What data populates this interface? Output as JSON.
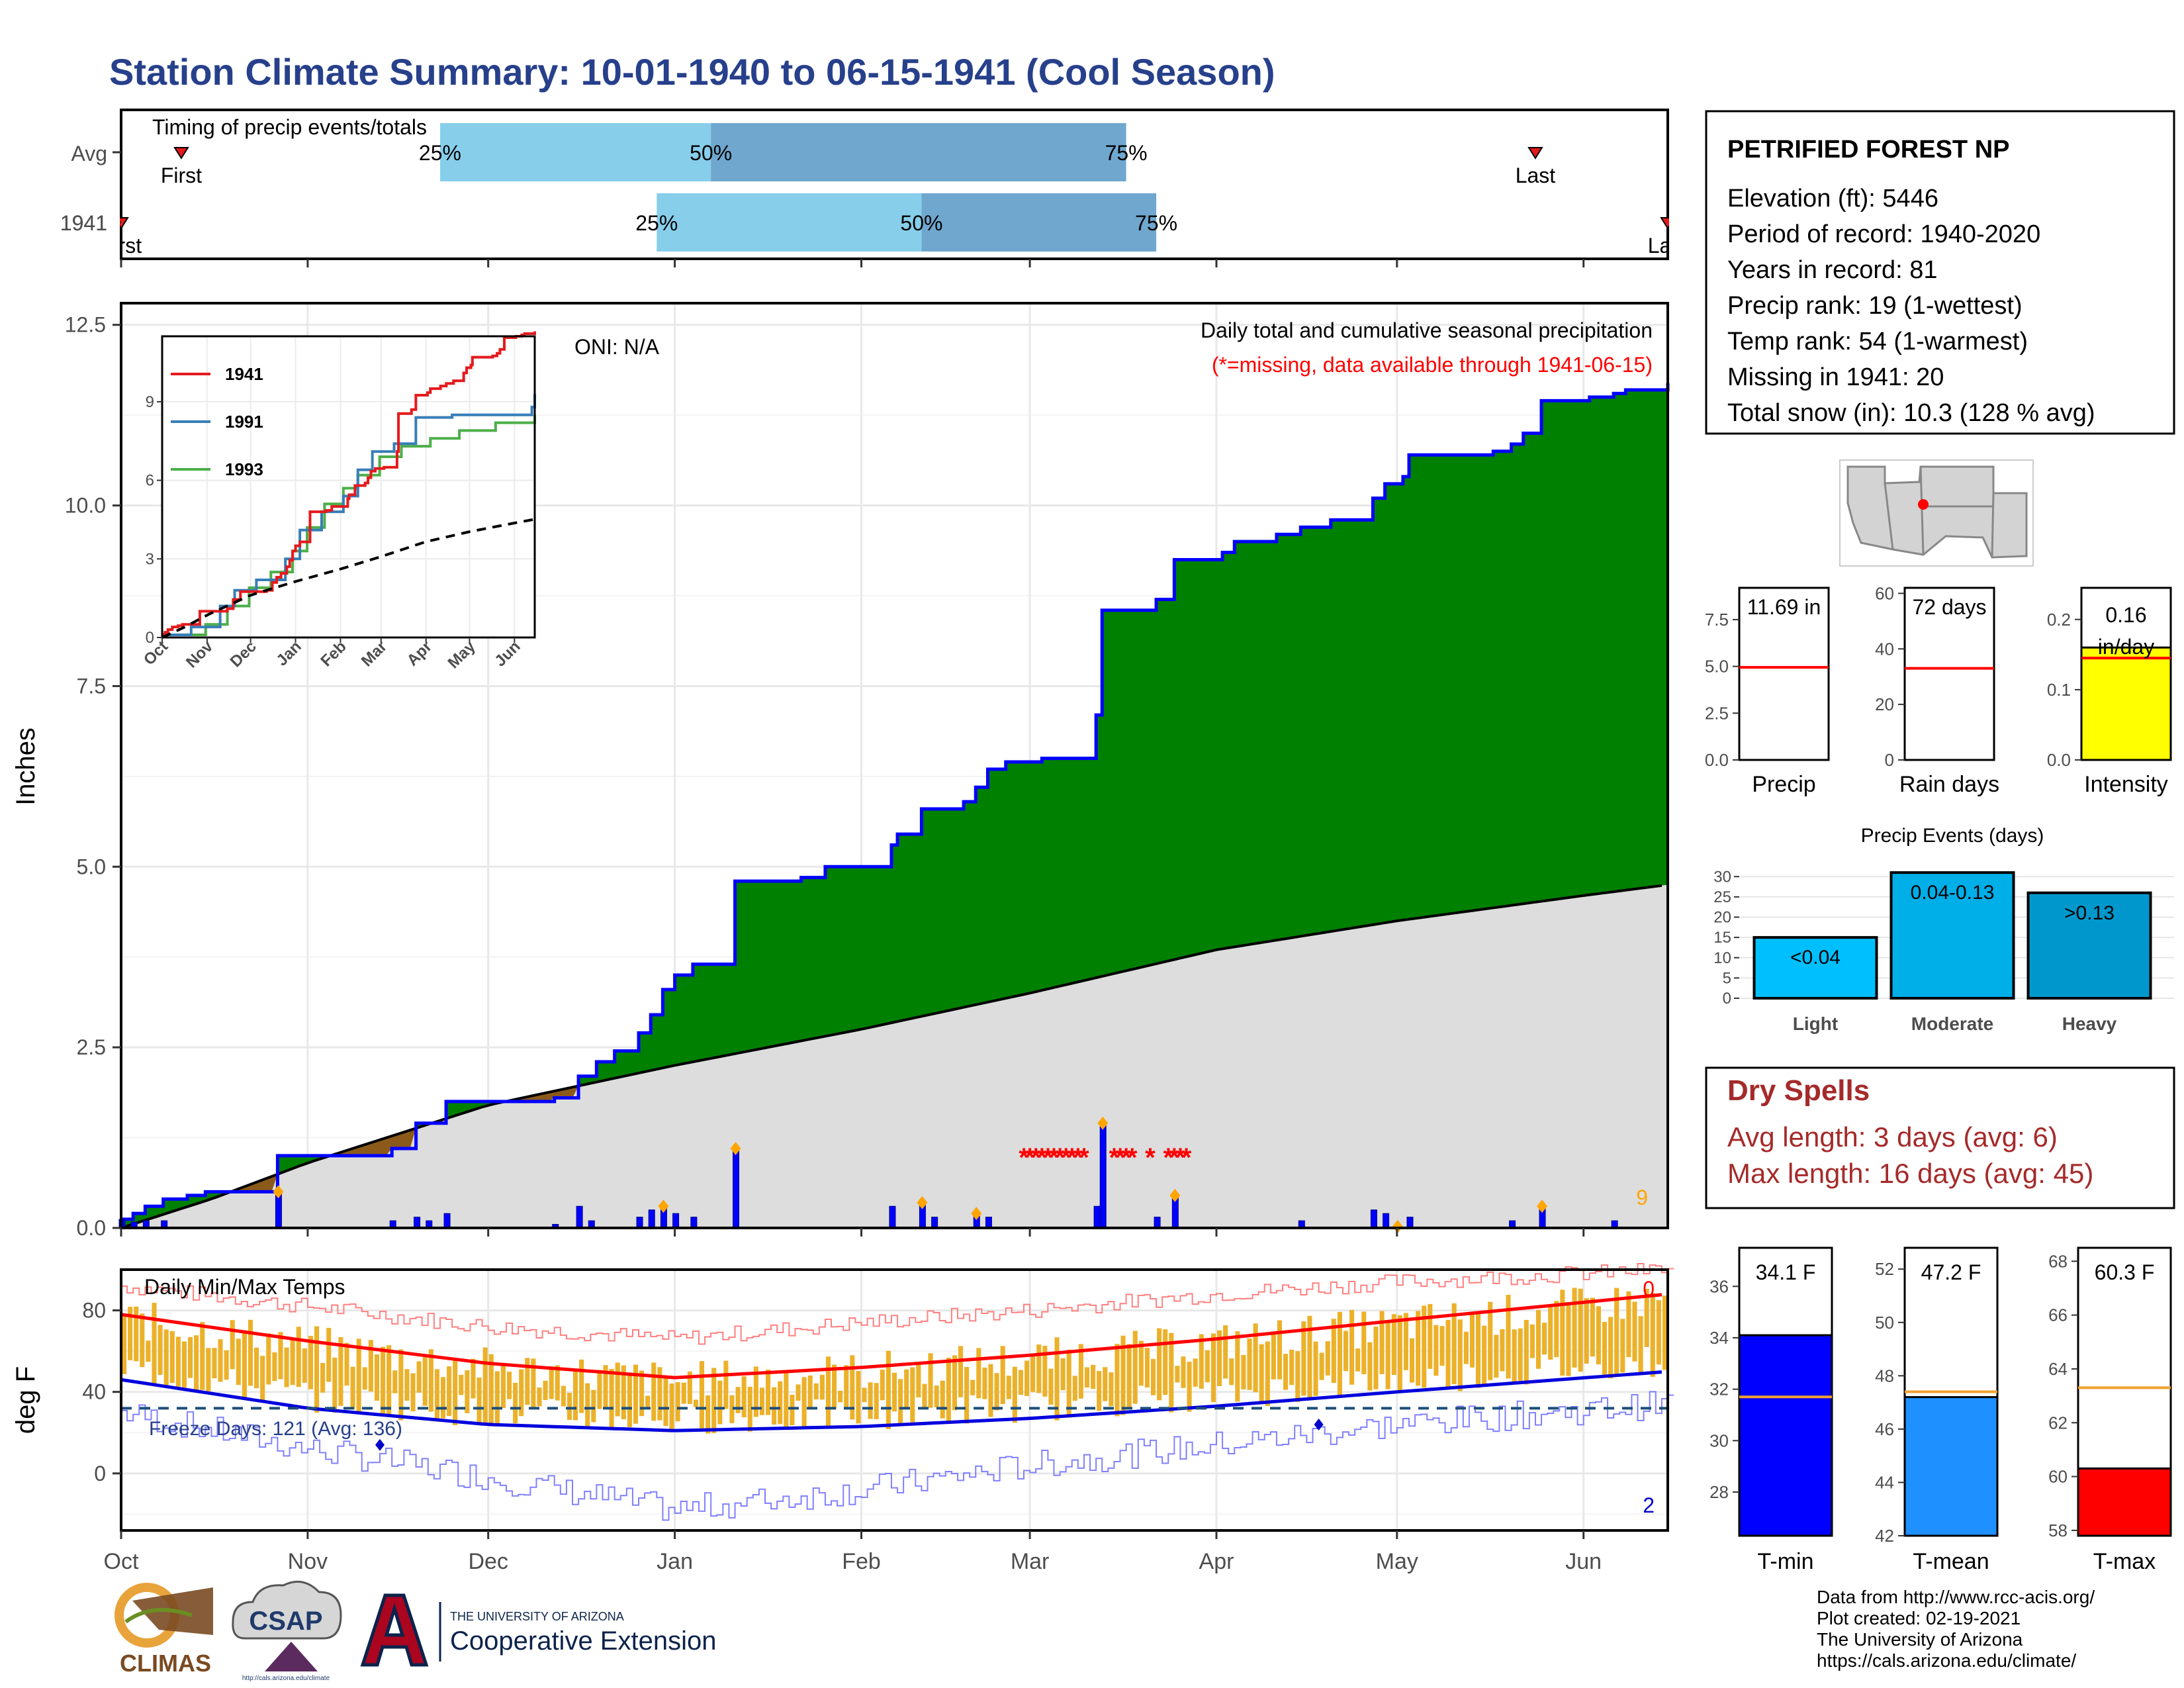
{
  "title": "Station Climate Summary: 10-01-1940 to 06-15-1941 (Cool Season)",
  "timing": {
    "label": "Timing of precip events/totals",
    "rows": [
      {
        "name": "Avg",
        "first": "First",
        "last": "Last",
        "first_date": "1940-10-11",
        "last_date": "1941-05-24",
        "q25": "25%",
        "q50": "50%",
        "q75": "75%",
        "q25_date": "1940-11-23",
        "q50_date": "1941-01-07",
        "q75_date": "1941-03-17"
      },
      {
        "name": "1941",
        "first": "First",
        "last": "Last",
        "first_date": "1940-10-01",
        "last_date": "1941-06-15",
        "q25": "25%",
        "q50": "50%",
        "q75": "75%",
        "q25_date": "1940-12-29",
        "q50_date": "1941-02-11",
        "q75_date": "1941-03-22"
      }
    ]
  },
  "main_panel": {
    "ylabel": "Inches",
    "oni": "ONI: N/A",
    "subtitle": "Daily total and cumulative seasonal precipitation",
    "note": "(*=missing, data available through 1941-06-15)",
    "count_label": "9",
    "yticks": [
      "0.0",
      "2.5",
      "5.0",
      "7.5",
      "10.0",
      "12.5"
    ],
    "colors": {
      "observed": "#008000",
      "deficit": "#8b5a1a",
      "normal": "#dddddd",
      "daily": "#0000ff",
      "missing": "#ff0000",
      "extreme": "#ffa500"
    }
  },
  "inset": {
    "legend": [
      "1941",
      "1991",
      "1993"
    ],
    "colors": [
      "#e41a1c",
      "#377eb8",
      "#4daf4a"
    ],
    "yticks": [
      "0",
      "3",
      "6",
      "9"
    ],
    "months": [
      "Oct",
      "Nov",
      "Dec",
      "Jan",
      "Feb",
      "Mar",
      "Apr",
      "May",
      "Jun"
    ]
  },
  "temp_panel": {
    "ylabel": "deg F",
    "label": "Daily Min/Max Temps",
    "freeze": "Freeze Days: 121 (Avg: 136)",
    "count_top": "0",
    "count_bottom": "2",
    "yticks": [
      "0",
      "40",
      "80"
    ]
  },
  "months": [
    "Oct",
    "Nov",
    "Dec",
    "Jan",
    "Feb",
    "Mar",
    "Apr",
    "May",
    "Jun"
  ],
  "station": {
    "name": "PETRIFIED FOREST NP",
    "lines": [
      "Elevation (ft): 5446",
      "Period of record: 1940-2020",
      "Years in record: 81",
      "Precip rank: 19 (1-wettest)",
      "Temp rank: 54 (1-warmest)",
      "Missing in 1941: 20",
      "Total snow (in): 10.3 (128 % avg)"
    ]
  },
  "mini_bars": [
    {
      "label": "Precip",
      "value_text": "11.69 in",
      "value": 11.69,
      "avg": 4.95,
      "ymax": 9.2,
      "ticks": [
        "0.0",
        "2.5",
        "5.0",
        "7.5"
      ],
      "tickvals": [
        0,
        2.5,
        5,
        7.5
      ],
      "color": "#ffffff"
    },
    {
      "label": "Rain days",
      "value_text": "72 days",
      "value": 72,
      "avg": 33,
      "ymax": 62,
      "ticks": [
        "0",
        "20",
        "40",
        "60"
      ],
      "tickvals": [
        0,
        20,
        40,
        60
      ],
      "color": "#ffffff"
    },
    {
      "label": "Intensity",
      "value_text": "0.16 in/day",
      "value_lines": [
        "0.16",
        "in/day"
      ],
      "value": 0.16,
      "avg": 0.145,
      "ymax": 0.245,
      "ticks": [
        "0.0",
        "0.1",
        "0.2"
      ],
      "tickvals": [
        0,
        0.1,
        0.2
      ],
      "color": "#ffff00"
    }
  ],
  "precip_events": {
    "title": "Precip Events (days)",
    "categories": [
      "Light",
      "Moderate",
      "Heavy"
    ],
    "labels": [
      "<0.04",
      "0.04-0.13",
      ">0.13"
    ],
    "values": [
      15,
      31,
      26
    ],
    "colors": [
      "#00bfff",
      "#00aee8",
      "#0098cc"
    ],
    "yticks": [
      "0",
      "5",
      "10",
      "15",
      "20",
      "25",
      "30"
    ]
  },
  "dry_spells": {
    "title": "Dry Spells",
    "lines": [
      "Avg length: 3 days (avg: 6)",
      "Max length: 16 days (avg: 45)"
    ]
  },
  "temp_bars": [
    {
      "label": "T-min",
      "value_text": "34.1 F",
      "value": 34.1,
      "avg": 31.7,
      "ymin": 26.3,
      "ymax": 37.5,
      "ticks": [
        "28",
        "30",
        "32",
        "34",
        "36"
      ],
      "tickvals": [
        28,
        30,
        32,
        34,
        36
      ],
      "color": "#0000ff"
    },
    {
      "label": "T-mean",
      "value_text": "47.2 F",
      "value": 47.2,
      "avg": 47.4,
      "ymin": 42,
      "ymax": 52.8,
      "ticks": [
        "42",
        "44",
        "46",
        "48",
        "50",
        "52"
      ],
      "tickvals": [
        42,
        44,
        46,
        48,
        50,
        52
      ],
      "color": "#1e90ff"
    },
    {
      "label": "T-max",
      "value_text": "60.3 F",
      "value": 60.3,
      "avg": 63.3,
      "ymin": 57.8,
      "ymax": 68.5,
      "ticks": [
        "58",
        "60",
        "62",
        "64",
        "66",
        "68"
      ],
      "tickvals": [
        58,
        60,
        62,
        64,
        66,
        68
      ],
      "color": "#ff0000"
    }
  ],
  "logos": {
    "climas": "CLIMAS",
    "csap": "CSAP",
    "csap_url": "http://cals.arizona.edu/climate",
    "ua_small": "THE UNIVERSITY OF ARIZONA",
    "ua_big": "Cooperative Extension"
  },
  "footer": [
    "Data from http://www.rcc-acis.org/",
    "Plot created: 02-19-2021",
    "The University of Arizona",
    "https://cals.arizona.edu/climate/"
  ],
  "chart_data": {
    "type": "area",
    "x_axis": {
      "start": "1940-10-01",
      "end": "1941-06-15",
      "tick_labels": [
        "Oct",
        "Nov",
        "Dec",
        "Jan",
        "Feb",
        "Mar",
        "Apr",
        "May",
        "Jun"
      ]
    },
    "ylim": [
      0,
      12.8
    ],
    "ylabel": "Inches",
    "cumulative_1941": [
      {
        "date": "1940-10-01",
        "v": 0.12
      },
      {
        "date": "1940-10-03",
        "v": 0.2
      },
      {
        "date": "1940-10-05",
        "v": 0.3
      },
      {
        "date": "1940-10-08",
        "v": 0.4
      },
      {
        "date": "1940-10-12",
        "v": 0.45
      },
      {
        "date": "1940-10-15",
        "v": 0.5
      },
      {
        "date": "1940-10-27",
        "v": 1.0
      },
      {
        "date": "1940-11-15",
        "v": 1.1
      },
      {
        "date": "1940-11-19",
        "v": 1.45
      },
      {
        "date": "1940-11-24",
        "v": 1.75
      },
      {
        "date": "1940-12-10",
        "v": 1.75
      },
      {
        "date": "1940-12-12",
        "v": 1.8
      },
      {
        "date": "1940-12-16",
        "v": 2.1
      },
      {
        "date": "1940-12-19",
        "v": 2.3
      },
      {
        "date": "1940-12-22",
        "v": 2.45
      },
      {
        "date": "1940-12-26",
        "v": 2.7
      },
      {
        "date": "1940-12-28",
        "v": 2.95
      },
      {
        "date": "1940-12-30",
        "v": 3.3
      },
      {
        "date": "1941-01-01",
        "v": 3.5
      },
      {
        "date": "1941-01-04",
        "v": 3.65
      },
      {
        "date": "1941-01-11",
        "v": 4.8
      },
      {
        "date": "1941-01-22",
        "v": 4.85
      },
      {
        "date": "1941-01-26",
        "v": 5.0
      },
      {
        "date": "1941-02-02",
        "v": 5.0
      },
      {
        "date": "1941-02-06",
        "v": 5.3
      },
      {
        "date": "1941-02-07",
        "v": 5.45
      },
      {
        "date": "1941-02-11",
        "v": 5.8
      },
      {
        "date": "1941-02-18",
        "v": 5.9
      },
      {
        "date": "1941-02-20",
        "v": 6.1
      },
      {
        "date": "1941-02-22",
        "v": 6.35
      },
      {
        "date": "1941-02-25",
        "v": 6.45
      },
      {
        "date": "1941-03-03",
        "v": 6.5
      },
      {
        "date": "1941-03-12",
        "v": 7.1
      },
      {
        "date": "1941-03-13",
        "v": 8.55
      },
      {
        "date": "1941-03-22",
        "v": 8.7
      },
      {
        "date": "1941-03-25",
        "v": 9.25
      },
      {
        "date": "1941-04-02",
        "v": 9.35
      },
      {
        "date": "1941-04-04",
        "v": 9.5
      },
      {
        "date": "1941-04-11",
        "v": 9.6
      },
      {
        "date": "1941-04-15",
        "v": 9.7
      },
      {
        "date": "1941-04-20",
        "v": 9.8
      },
      {
        "date": "1941-04-27",
        "v": 10.1
      },
      {
        "date": "1941-04-29",
        "v": 10.3
      },
      {
        "date": "1941-05-02",
        "v": 10.4
      },
      {
        "date": "1941-05-03",
        "v": 10.7
      },
      {
        "date": "1941-05-17",
        "v": 10.75
      },
      {
        "date": "1941-05-20",
        "v": 10.85
      },
      {
        "date": "1941-05-22",
        "v": 11.0
      },
      {
        "date": "1941-05-25",
        "v": 11.45
      },
      {
        "date": "1941-06-02",
        "v": 11.5
      },
      {
        "date": "1941-06-06",
        "v": 11.55
      },
      {
        "date": "1941-06-08",
        "v": 11.6
      },
      {
        "date": "1941-06-15",
        "v": 11.69
      }
    ],
    "normal_cumulative": [
      {
        "date": "1940-10-01",
        "v": 0.0
      },
      {
        "date": "1940-10-16",
        "v": 0.4
      },
      {
        "date": "1940-11-01",
        "v": 0.9
      },
      {
        "date": "1940-12-01",
        "v": 1.7
      },
      {
        "date": "1941-01-01",
        "v": 2.25
      },
      {
        "date": "1941-02-01",
        "v": 2.75
      },
      {
        "date": "1941-03-01",
        "v": 3.25
      },
      {
        "date": "1941-04-01",
        "v": 3.85
      },
      {
        "date": "1941-05-01",
        "v": 4.25
      },
      {
        "date": "1941-06-01",
        "v": 4.6
      },
      {
        "date": "1941-06-15",
        "v": 4.75
      }
    ],
    "daily_1941": [
      {
        "date": "1940-10-01",
        "v": 0.12
      },
      {
        "date": "1940-10-03",
        "v": 0.08
      },
      {
        "date": "1940-10-05",
        "v": 0.1
      },
      {
        "date": "1940-10-08",
        "v": 0.1
      },
      {
        "date": "1940-10-27",
        "v": 0.5
      },
      {
        "date": "1940-11-15",
        "v": 0.1
      },
      {
        "date": "1940-11-19",
        "v": 0.15
      },
      {
        "date": "1940-11-21",
        "v": 0.1
      },
      {
        "date": "1940-11-24",
        "v": 0.2
      },
      {
        "date": "1940-12-12",
        "v": 0.05
      },
      {
        "date": "1940-12-16",
        "v": 0.3
      },
      {
        "date": "1940-12-18",
        "v": 0.1
      },
      {
        "date": "1940-12-26",
        "v": 0.15
      },
      {
        "date": "1940-12-28",
        "v": 0.25
      },
      {
        "date": "1940-12-30",
        "v": 0.3
      },
      {
        "date": "1941-01-01",
        "v": 0.2
      },
      {
        "date": "1941-01-04",
        "v": 0.15
      },
      {
        "date": "1941-01-11",
        "v": 1.1
      },
      {
        "date": "1941-02-06",
        "v": 0.3
      },
      {
        "date": "1941-02-11",
        "v": 0.35
      },
      {
        "date": "1941-02-13",
        "v": 0.15
      },
      {
        "date": "1941-02-20",
        "v": 0.2
      },
      {
        "date": "1941-02-22",
        "v": 0.15
      },
      {
        "date": "1941-03-12",
        "v": 0.3
      },
      {
        "date": "1941-03-13",
        "v": 1.45
      },
      {
        "date": "1941-03-25",
        "v": 0.45
      },
      {
        "date": "1941-03-22",
        "v": 0.15
      },
      {
        "date": "1941-04-15",
        "v": 0.1
      },
      {
        "date": "1941-04-27",
        "v": 0.25
      },
      {
        "date": "1941-04-29",
        "v": 0.2
      },
      {
        "date": "1941-05-03",
        "v": 0.15
      },
      {
        "date": "1941-05-20",
        "v": 0.1
      },
      {
        "date": "1941-05-25",
        "v": 0.3
      },
      {
        "date": "1941-06-06",
        "v": 0.1
      }
    ],
    "missing": [
      "1941-02-28",
      "1941-03-01",
      "1941-03-02",
      "1941-03-03",
      "1941-03-04",
      "1941-03-05",
      "1941-03-06",
      "1941-03-07",
      "1941-03-08",
      "1941-03-09",
      "1941-03-10",
      "1941-03-15",
      "1941-03-16",
      "1941-03-17",
      "1941-03-18",
      "1941-03-21",
      "1941-03-24",
      "1941-03-25",
      "1941-03-26",
      "1941-03-27"
    ],
    "extremes": [
      "1940-10-27",
      "1940-12-30",
      "1941-01-11",
      "1941-02-11",
      "1941-02-20",
      "1941-03-13",
      "1941-03-25",
      "1941-05-25",
      "1941-05-01"
    ],
    "temperature": {
      "ylim": [
        -28,
        100
      ],
      "normal_max": [
        {
          "date": "1940-10-01",
          "v": 78
        },
        {
          "date": "1940-11-01",
          "v": 65
        },
        {
          "date": "1940-12-01",
          "v": 54
        },
        {
          "date": "1941-01-01",
          "v": 47
        },
        {
          "date": "1941-02-01",
          "v": 52
        },
        {
          "date": "1941-03-01",
          "v": 58
        },
        {
          "date": "1941-04-01",
          "v": 66
        },
        {
          "date": "1941-05-01",
          "v": 75
        },
        {
          "date": "1941-06-15",
          "v": 88
        }
      ],
      "normal_min": [
        {
          "date": "1940-10-01",
          "v": 46
        },
        {
          "date": "1940-11-01",
          "v": 32
        },
        {
          "date": "1940-12-01",
          "v": 24
        },
        {
          "date": "1941-01-01",
          "v": 21
        },
        {
          "date": "1941-02-01",
          "v": 23
        },
        {
          "date": "1941-03-01",
          "v": 27
        },
        {
          "date": "1941-04-01",
          "v": 33
        },
        {
          "date": "1941-05-01",
          "v": 40
        },
        {
          "date": "1941-06-15",
          "v": 50
        }
      ],
      "record_max": [
        {
          "date": "1940-10-01",
          "v": 92
        },
        {
          "date": "1940-11-01",
          "v": 82
        },
        {
          "date": "1940-12-01",
          "v": 72
        },
        {
          "date": "1941-01-01",
          "v": 66
        },
        {
          "date": "1941-02-01",
          "v": 74
        },
        {
          "date": "1941-03-01",
          "v": 80
        },
        {
          "date": "1941-04-01",
          "v": 88
        },
        {
          "date": "1941-05-01",
          "v": 94
        },
        {
          "date": "1941-06-15",
          "v": 100
        }
      ],
      "record_min": [
        {
          "date": "1940-10-01",
          "v": 30
        },
        {
          "date": "1940-11-01",
          "v": 12
        },
        {
          "date": "1940-12-01",
          "v": -2
        },
        {
          "date": "1941-01-01",
          "v": -18
        },
        {
          "date": "1941-02-01",
          "v": -8
        },
        {
          "date": "1941-03-01",
          "v": 4
        },
        {
          "date": "1941-04-01",
          "v": 14
        },
        {
          "date": "1941-05-01",
          "v": 24
        },
        {
          "date": "1941-06-15",
          "v": 34
        }
      ],
      "freeze_line": 32,
      "record_low_markers": [
        {
          "date": "1940-11-13",
          "v": 14
        },
        {
          "date": "1941-04-18",
          "v": 24
        }
      ]
    }
  }
}
